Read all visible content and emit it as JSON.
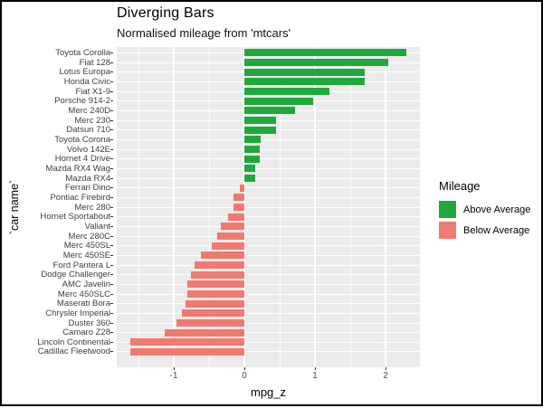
{
  "chart_data": {
    "type": "bar",
    "orientation": "horizontal_diverging",
    "title": "Diverging Bars",
    "subtitle": "Normalised mileage from 'mtcars'",
    "xlabel": "mpg_z",
    "ylabel": "`car name`",
    "xlim": [
      -1.81,
      2.49
    ],
    "x_ticks": [
      -1,
      0,
      1,
      2
    ],
    "x_tick_labels": [
      "-1",
      "0",
      "1",
      "2"
    ],
    "grid": "white major+minor vertical lines, white major horizontal lines on gray panel",
    "legend": {
      "title": "Mileage",
      "position": "right",
      "entries": [
        {
          "label": "Above Average",
          "group": "above",
          "color": "#21A83C"
        },
        {
          "label": "Below Average",
          "group": "below",
          "color": "#F1796F"
        }
      ]
    },
    "categories": [
      "Toyota Corolla",
      "Fiat 128",
      "Lotus Europa",
      "Honda Civic",
      "Fiat X1-9",
      "Porsche 914-2",
      "Merc 240D",
      "Merc 230",
      "Datsun 710",
      "Toyota Corona",
      "Volvo 142E",
      "Hornet 4 Drive",
      "Mazda RX4 Wag",
      "Mazda RX4",
      "Ferrari Dino",
      "Pontiac Firebird",
      "Merc 280",
      "Hornet Sportabout",
      "Valiant",
      "Merc 280C",
      "Merc 450SL",
      "Merc 450SE",
      "Ford Pantera L",
      "Dodge Challenger",
      "AMC Javelin",
      "Merc 450SLC",
      "Maserati Bora",
      "Chrysler Imperial",
      "Duster 360",
      "Camaro Z28",
      "Lincoln Continental",
      "Cadillac Fleetwood"
    ],
    "values": [
      2.29,
      2.04,
      1.71,
      1.71,
      1.2,
      0.98,
      0.72,
      0.45,
      0.45,
      0.23,
      0.22,
      0.22,
      0.15,
      0.15,
      -0.06,
      -0.15,
      -0.15,
      -0.23,
      -0.33,
      -0.38,
      -0.46,
      -0.61,
      -0.71,
      -0.76,
      -0.81,
      -0.81,
      -0.84,
      -0.89,
      -0.96,
      -1.13,
      -1.61,
      -1.61
    ],
    "colors": {
      "above": "#21A83C",
      "below": "#F1796F",
      "panel_bg": "#EBEBEB",
      "gridline": "#FFFFFF",
      "axis_text": "#4D4D4D",
      "tick_mark": "#333333",
      "text": "#000000"
    }
  }
}
